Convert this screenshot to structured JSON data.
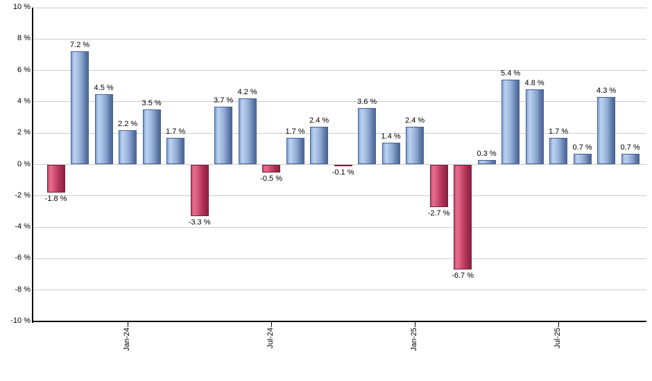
{
  "chart": {
    "background_color": "#ffffff"
  },
  "chart_data": {
    "type": "bar",
    "title": "",
    "xlabel": "",
    "ylabel": "",
    "values": [
      -1.8,
      7.2,
      4.5,
      2.2,
      3.5,
      1.7,
      -3.3,
      3.7,
      4.2,
      -0.5,
      1.7,
      2.4,
      -0.1,
      3.6,
      1.4,
      2.4,
      -2.7,
      -6.7,
      0.3,
      5.4,
      4.8,
      1.7,
      0.7,
      4.3,
      0.7
    ],
    "bar_labels": [
      "-1.8 %",
      "7.2 %",
      "4.5 %",
      "2.2 %",
      "3.5 %",
      "1.7 %",
      "-3.3 %",
      "3.7 %",
      "4.2 %",
      "-0.5 %",
      "1.7 %",
      "2.4 %",
      "-0.1 %",
      "3.6 %",
      "1.4 %",
      "2.4 %",
      "-2.7 %",
      "-6.7 %",
      "0.3 %",
      "5.4 %",
      "4.8 %",
      "1.7 %",
      "0.7 %",
      "4.3 %",
      "0.7 %"
    ],
    "x_tick_labels": [
      "Jan-24",
      "Jul-24",
      "Jan-25",
      "Jul-25"
    ],
    "x_tick_bar_indices": [
      3,
      9,
      15,
      21
    ],
    "y_tick_labels": [
      "10 %",
      "8 %",
      "6 %",
      "4 %",
      "2 %",
      "0 %",
      "-2 %",
      "-4 %",
      "-6 %",
      "-8 %",
      "-10 %"
    ],
    "y_tick_values": [
      10,
      8,
      6,
      4,
      2,
      0,
      -2,
      -4,
      -6,
      -8,
      -10
    ],
    "ylim": [
      -10,
      10
    ],
    "grid": true,
    "legend": false,
    "positive_color": "#7f9fd8",
    "negative_color": "#c04a6e",
    "gridline_color": "#cccccc",
    "axis_color": "#000000"
  }
}
